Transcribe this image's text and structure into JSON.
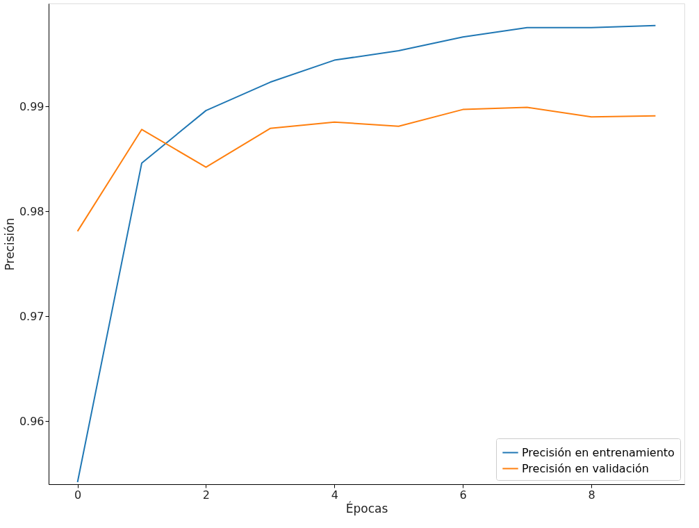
{
  "chart_data": {
    "type": "line",
    "xlabel": "Épocas",
    "ylabel": "Precisión",
    "x": [
      0,
      1,
      2,
      3,
      4,
      5,
      6,
      7,
      8,
      9
    ],
    "series": [
      {
        "name": "Precisión en entrenamiento",
        "color": "#1f77b4",
        "values": [
          0.9542,
          0.9846,
          0.9896,
          0.9923,
          0.9944,
          0.9953,
          0.9966,
          0.9975,
          0.9975,
          0.9977
        ]
      },
      {
        "name": "Precisión en validación",
        "color": "#ff7f0e",
        "values": [
          0.9781,
          0.9878,
          0.9842,
          0.9879,
          0.9885,
          0.9881,
          0.9897,
          0.9899,
          0.989,
          0.9891
        ]
      }
    ],
    "xlim": [
      -0.45,
      9.45
    ],
    "ylim": [
      0.954,
      0.9998
    ],
    "xticks": [
      0,
      2,
      4,
      6,
      8
    ],
    "yticks": [
      0.96,
      0.97,
      0.98,
      0.99
    ],
    "grid": false,
    "legend": "bottom right",
    "marker": "none",
    "line_style": "solid"
  }
}
